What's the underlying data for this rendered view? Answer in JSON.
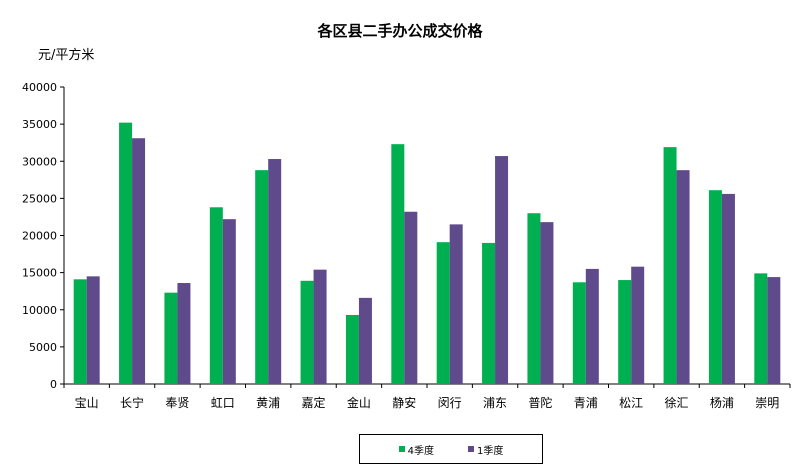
{
  "chart_data": {
    "type": "bar",
    "title": "各区县二手办公成交价格",
    "ylabel": "元/平方米",
    "xlabel": "",
    "ylim": [
      0,
      40000
    ],
    "yticks": [
      "40000",
      "35000",
      "30000",
      "25000",
      "20000",
      "15000",
      "10000",
      "5000",
      "0"
    ],
    "categories": [
      "宝山",
      "长宁",
      "奉贤",
      "虹口",
      "黄浦",
      "嘉定",
      "金山",
      "静安",
      "闵行",
      "浦东",
      "普陀",
      "青浦",
      "松江",
      "徐汇",
      "杨浦",
      "崇明"
    ],
    "series": [
      {
        "name": "4季度",
        "color": "#00b050",
        "values": [
          14100,
          35200,
          12300,
          23800,
          28800,
          13900,
          9300,
          32300,
          19100,
          19000,
          23000,
          13700,
          14000,
          31900,
          26100,
          14900
        ]
      },
      {
        "name": "1季度",
        "color": "#5f4b8b",
        "values": [
          14500,
          33100,
          13600,
          22200,
          30300,
          15400,
          11600,
          23200,
          21500,
          30700,
          21800,
          15500,
          15800,
          28800,
          25600,
          14400
        ]
      }
    ],
    "grid": false,
    "legend_position": "bottom"
  }
}
